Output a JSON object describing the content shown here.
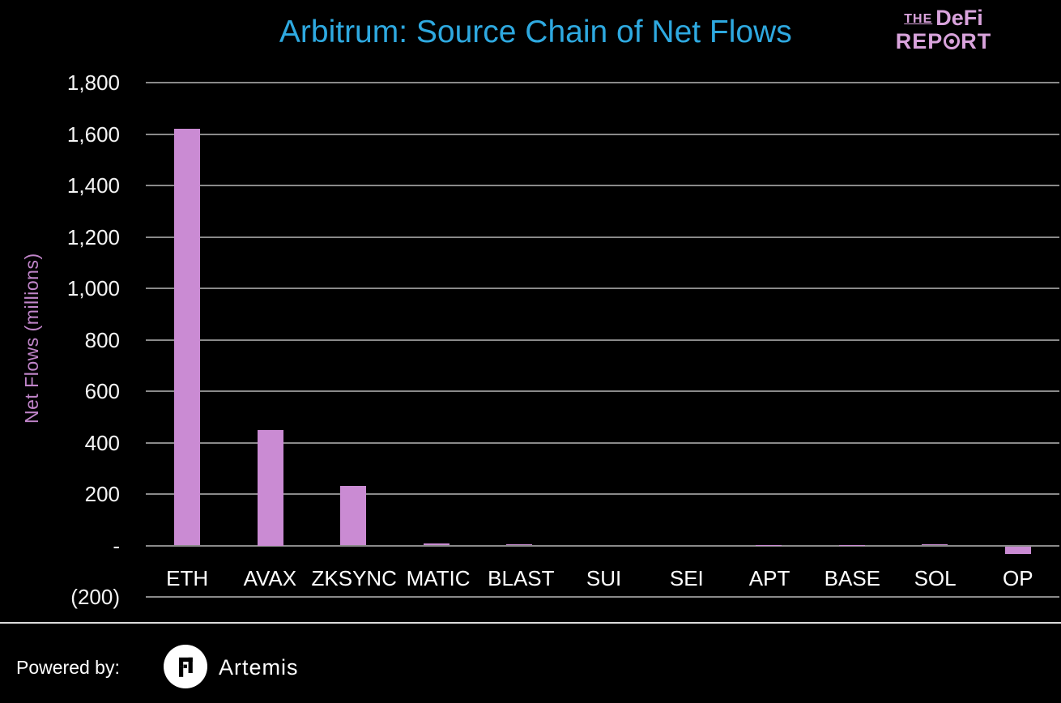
{
  "header": {
    "title": "Arbitrum: Source Chain of Net Flows",
    "title_color": "#2ea9e0",
    "logo": {
      "the": "THE",
      "defi": "DeFi",
      "rep": "REP",
      "rt": "RT",
      "color": "#d9a3dc"
    }
  },
  "chart_data": {
    "type": "bar",
    "title": "Arbitrum: Source Chain of Net Flows",
    "categories": [
      "ETH",
      "AVAX",
      "ZKSYNC",
      "MATIC",
      "BLAST",
      "SUI",
      "SEI",
      "APT",
      "BASE",
      "SOL",
      "OP"
    ],
    "values": [
      1620,
      450,
      230,
      8,
      4,
      0,
      0,
      2,
      2,
      5,
      -30
    ],
    "xlabel": "",
    "ylabel": "Net Flows (millions)",
    "ylim": [
      -200,
      1800
    ],
    "ytick_interval": 200,
    "ytick_labels_top_to_bottom": [
      "1,800",
      "1,600",
      "1,400",
      "1,200",
      "1,000",
      "800",
      "600",
      "400",
      "200",
      "-",
      "(200)"
    ],
    "grid": true,
    "legend": "none",
    "bar_color": "#ca8bd3",
    "gridline_color": "#8a8a8a",
    "tick_label_color": "#f5f5f5",
    "axis_label_color": "#c185ca",
    "background_color": "#000000"
  },
  "footer": {
    "powered_by": "Powered by:",
    "brand": "Artemis"
  }
}
